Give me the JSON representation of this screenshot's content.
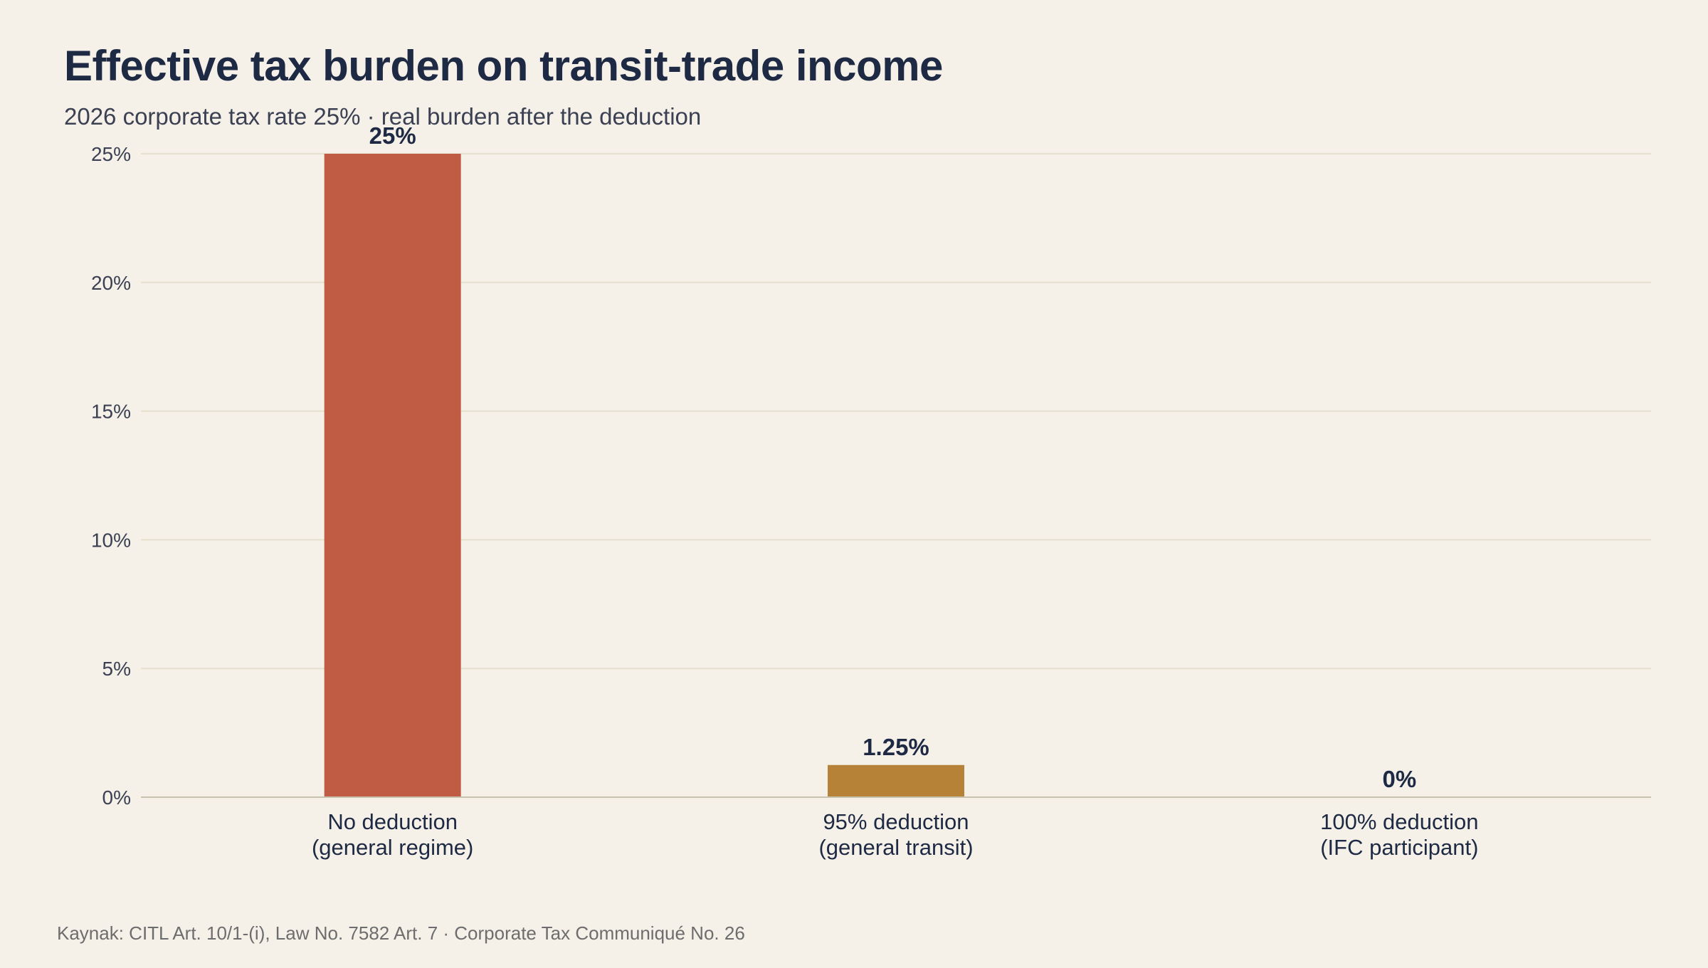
{
  "header": {
    "title": "Effective tax burden on transit-trade income",
    "subtitle": "2026 corporate tax rate 25% · real burden after the deduction"
  },
  "footer": {
    "source": "Kaynak: CITL Art. 10/1-(i), Law No. 7582 Art. 7 · Corporate Tax Communiqué No. 26"
  },
  "chart_data": {
    "type": "bar",
    "title": "Effective tax burden on transit-trade income",
    "subtitle": "2026 corporate tax rate 25% · real burden after the deduction",
    "xlabel": "",
    "ylabel": "",
    "categories": [
      [
        "No deduction",
        "(general regime)"
      ],
      [
        "95% deduction",
        "(general transit)"
      ],
      [
        "100% deduction",
        "(IFC participant)"
      ]
    ],
    "values": [
      25,
      1.25,
      0
    ],
    "value_labels": [
      "25%",
      "1.25%",
      "0%"
    ],
    "colors": [
      "#c05c44",
      "#b58237",
      "#9aa0aa"
    ],
    "ylim": [
      0,
      25
    ],
    "yticks": [
      0,
      5,
      10,
      15,
      20,
      25
    ],
    "ytick_labels": [
      "0%",
      "5%",
      "10%",
      "15%",
      "20%",
      "25%"
    ],
    "grid": true,
    "legend": "none"
  }
}
